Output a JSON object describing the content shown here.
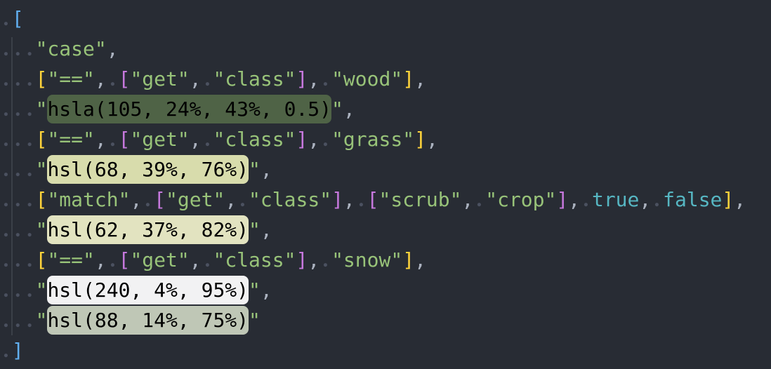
{
  "editor": {
    "background": "#282c34",
    "lines": [
      {
        "tokens": [
          {
            "t": " ",
            "k": "ws"
          },
          {
            "t": "[",
            "k": "b1"
          }
        ]
      },
      {
        "tokens": [
          {
            "t": "   ",
            "k": "ws"
          },
          {
            "t": "\"case\"",
            "k": "str"
          },
          {
            "t": ",",
            "k": "punc"
          }
        ]
      },
      {
        "tokens": [
          {
            "t": "   ",
            "k": "ws"
          },
          {
            "t": "[",
            "k": "b2"
          },
          {
            "t": "\"==\"",
            "k": "str"
          },
          {
            "t": ",",
            "k": "punc"
          },
          {
            "t": " ",
            "k": "ws"
          },
          {
            "t": "[",
            "k": "b3"
          },
          {
            "t": "\"get\"",
            "k": "str"
          },
          {
            "t": ",",
            "k": "punc"
          },
          {
            "t": " ",
            "k": "ws"
          },
          {
            "t": "\"class\"",
            "k": "str"
          },
          {
            "t": "]",
            "k": "b3"
          },
          {
            "t": ",",
            "k": "punc"
          },
          {
            "t": " ",
            "k": "ws"
          },
          {
            "t": "\"wood\"",
            "k": "str"
          },
          {
            "t": "]",
            "k": "b2"
          },
          {
            "t": ",",
            "k": "punc"
          }
        ]
      },
      {
        "tokens": [
          {
            "t": "   ",
            "k": "ws"
          },
          {
            "t": "\"",
            "k": "str"
          },
          {
            "t": "hsla(105, 24%, 43%, 0.5)",
            "k": "swatch",
            "c": "#4f6346"
          },
          {
            "t": "\"",
            "k": "str"
          },
          {
            "t": ",",
            "k": "punc"
          }
        ]
      },
      {
        "tokens": [
          {
            "t": "   ",
            "k": "ws"
          },
          {
            "t": "[",
            "k": "b2"
          },
          {
            "t": "\"==\"",
            "k": "str"
          },
          {
            "t": ",",
            "k": "punc"
          },
          {
            "t": " ",
            "k": "ws"
          },
          {
            "t": "[",
            "k": "b3"
          },
          {
            "t": "\"get\"",
            "k": "str"
          },
          {
            "t": ",",
            "k": "punc"
          },
          {
            "t": " ",
            "k": "ws"
          },
          {
            "t": "\"class\"",
            "k": "str"
          },
          {
            "t": "]",
            "k": "b3"
          },
          {
            "t": ",",
            "k": "punc"
          },
          {
            "t": " ",
            "k": "ws"
          },
          {
            "t": "\"grass\"",
            "k": "str"
          },
          {
            "t": "]",
            "k": "b2"
          },
          {
            "t": ",",
            "k": "punc"
          }
        ]
      },
      {
        "tokens": [
          {
            "t": "   ",
            "k": "ws"
          },
          {
            "t": "\"",
            "k": "str"
          },
          {
            "t": "hsl(68, 39%, 76%)",
            "k": "swatch",
            "c": "#d8dcac"
          },
          {
            "t": "\"",
            "k": "str"
          },
          {
            "t": ",",
            "k": "punc"
          }
        ]
      },
      {
        "tokens": [
          {
            "t": "   ",
            "k": "ws"
          },
          {
            "t": "[",
            "k": "b2"
          },
          {
            "t": "\"match\"",
            "k": "str"
          },
          {
            "t": ",",
            "k": "punc"
          },
          {
            "t": " ",
            "k": "ws"
          },
          {
            "t": "[",
            "k": "b3"
          },
          {
            "t": "\"get\"",
            "k": "str"
          },
          {
            "t": ",",
            "k": "punc"
          },
          {
            "t": " ",
            "k": "ws"
          },
          {
            "t": "\"class\"",
            "k": "str"
          },
          {
            "t": "]",
            "k": "b3"
          },
          {
            "t": ",",
            "k": "punc"
          },
          {
            "t": " ",
            "k": "ws"
          },
          {
            "t": "[",
            "k": "b3"
          },
          {
            "t": "\"scrub\"",
            "k": "str"
          },
          {
            "t": ",",
            "k": "punc"
          },
          {
            "t": " ",
            "k": "ws"
          },
          {
            "t": "\"crop\"",
            "k": "str"
          },
          {
            "t": "]",
            "k": "b3"
          },
          {
            "t": ",",
            "k": "punc"
          },
          {
            "t": " ",
            "k": "ws"
          },
          {
            "t": "true",
            "k": "bool"
          },
          {
            "t": ",",
            "k": "punc"
          },
          {
            "t": " ",
            "k": "ws"
          },
          {
            "t": "false",
            "k": "bool"
          },
          {
            "t": "]",
            "k": "b2"
          },
          {
            "t": ",",
            "k": "punc"
          }
        ]
      },
      {
        "tokens": [
          {
            "t": "   ",
            "k": "ws"
          },
          {
            "t": "\"",
            "k": "str"
          },
          {
            "t": "hsl(62, 37%, 82%)",
            "k": "swatch",
            "c": "#e2e3c0"
          },
          {
            "t": "\"",
            "k": "str"
          },
          {
            "t": ",",
            "k": "punc"
          }
        ]
      },
      {
        "tokens": [
          {
            "t": "   ",
            "k": "ws"
          },
          {
            "t": "[",
            "k": "b2"
          },
          {
            "t": "\"==\"",
            "k": "str"
          },
          {
            "t": ",",
            "k": "punc"
          },
          {
            "t": " ",
            "k": "ws"
          },
          {
            "t": "[",
            "k": "b3"
          },
          {
            "t": "\"get\"",
            "k": "str"
          },
          {
            "t": ",",
            "k": "punc"
          },
          {
            "t": " ",
            "k": "ws"
          },
          {
            "t": "\"class\"",
            "k": "str"
          },
          {
            "t": "]",
            "k": "b3"
          },
          {
            "t": ",",
            "k": "punc"
          },
          {
            "t": " ",
            "k": "ws"
          },
          {
            "t": "\"snow\"",
            "k": "str"
          },
          {
            "t": "]",
            "k": "b2"
          },
          {
            "t": ",",
            "k": "punc"
          }
        ]
      },
      {
        "tokens": [
          {
            "t": "   ",
            "k": "ws"
          },
          {
            "t": "\"",
            "k": "str"
          },
          {
            "t": "hsl(240, 4%, 95%)",
            "k": "swatch",
            "c": "#f2f2f3"
          },
          {
            "t": "\"",
            "k": "str"
          },
          {
            "t": ",",
            "k": "punc"
          }
        ]
      },
      {
        "tokens": [
          {
            "t": "   ",
            "k": "ws"
          },
          {
            "t": "\"",
            "k": "str"
          },
          {
            "t": "hsl(88, 14%, 75%)",
            "k": "swatch",
            "c": "#bfc7b6"
          },
          {
            "t": "\"",
            "k": "str"
          }
        ]
      },
      {
        "tokens": [
          {
            "t": " ",
            "k": "ws"
          },
          {
            "t": "]",
            "k": "b1"
          }
        ]
      }
    ]
  }
}
